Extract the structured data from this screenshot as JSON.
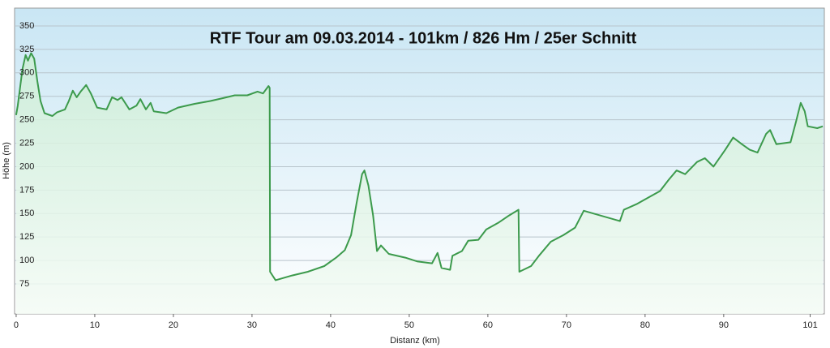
{
  "chart_data": {
    "type": "area",
    "title": "RTF Tour am 09.03.2014 - 101km / 826 Hm / 25er Schnitt",
    "x_label": "Distanz  (km)",
    "y_label": "Höhe (m)",
    "x": [
      0,
      0.2,
      0.8,
      1.2,
      1.5,
      1.9,
      2.3,
      2.7,
      3.1,
      3.6,
      4.6,
      5.2,
      6.2,
      6.7,
      7.2,
      7.7,
      8.2,
      8.9,
      9.5,
      10.3,
      11.5,
      12.2,
      12.9,
      13.4,
      14.4,
      15.3,
      15.8,
      16.5,
      17.1,
      17.5,
      19.1,
      20.6,
      22.7,
      24.7,
      26.3,
      27.8,
      29.4,
      30.7,
      31.4,
      32.1,
      32.25,
      32.3,
      33.0,
      35.1,
      37.1,
      39.2,
      40.7,
      41.8,
      42.6,
      43.3,
      44.0,
      44.3,
      44.8,
      45.4,
      45.9,
      46.4,
      47.4,
      49.5,
      51.0,
      52.9,
      53.6,
      54.1,
      55.2,
      55.5,
      56.7,
      57.5,
      58.8,
      59.8,
      61.3,
      62.7,
      63.9,
      64.0,
      65.5,
      66.5,
      68.0,
      69.6,
      71.1,
      72.2,
      76.8,
      77.3,
      78.9,
      80.4,
      81.9,
      83.0,
      84.0,
      85.1,
      86.6,
      87.6,
      88.7,
      90.2,
      91.2,
      92.3,
      93.3,
      94.3,
      95.4,
      95.9,
      96.7,
      98.5,
      99.2,
      99.8,
      100.3,
      100.7,
      101.9,
      102.6
    ],
    "values": [
      255,
      265,
      304,
      319,
      313,
      321,
      315,
      291,
      270,
      257,
      254,
      258,
      261,
      270,
      281,
      274,
      280,
      287,
      278,
      263,
      261,
      274,
      271,
      274,
      261,
      265,
      272,
      261,
      268,
      259,
      257,
      263,
      267,
      270,
      273,
      276,
      276,
      280,
      278,
      286,
      284,
      88,
      79,
      84,
      88,
      94,
      103,
      111,
      127,
      161,
      192,
      196,
      180,
      148,
      110,
      116,
      107,
      103,
      99,
      97,
      108,
      92,
      90,
      105,
      110,
      121,
      122,
      133,
      140,
      148,
      154,
      88,
      94,
      105,
      120,
      127,
      135,
      153,
      142,
      154,
      160,
      167,
      174,
      186,
      196,
      192,
      205,
      209,
      200,
      218,
      231,
      224,
      218,
      215,
      235,
      239,
      224,
      226,
      248,
      268,
      259,
      243,
      241,
      243
    ],
    "color": "#3c9a4c",
    "xlim": [
      -0.2,
      102.8
    ],
    "xticks": [
      0,
      10,
      20,
      30,
      40,
      50,
      60,
      70,
      80,
      90,
      101
    ],
    "ylim": [
      43,
      369
    ],
    "yticks": [
      75,
      100,
      125,
      150,
      175,
      200,
      225,
      250,
      275,
      300,
      325,
      350
    ],
    "grid": true
  }
}
